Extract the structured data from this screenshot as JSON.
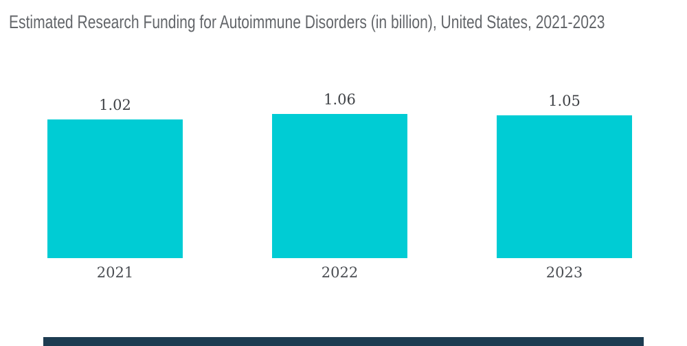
{
  "chart_data": {
    "type": "bar",
    "title": "Estimated Research Funding for Autoimmune Disorders (in billion), United States, 2021-2023",
    "categories": [
      "2021",
      "2022",
      "2023"
    ],
    "values": [
      1.02,
      1.06,
      1.05
    ],
    "value_labels": [
      "1.02",
      "1.06",
      "1.05"
    ],
    "xlabel": "",
    "ylabel": "",
    "ylim": [
      0,
      1.5
    ],
    "grid": false,
    "legend": false,
    "bar_color": "#00CCD4",
    "title_color": "#63666A",
    "value_label_color": "#3F4246",
    "category_label_color": "#4A4D52",
    "footer_bar_color": "#1D3C51",
    "background_color": "#FFFFFF"
  }
}
